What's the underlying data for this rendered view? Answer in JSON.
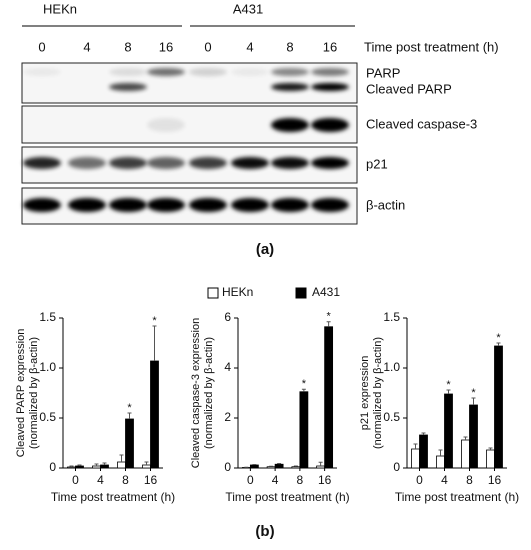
{
  "blot": {
    "cell_lines": [
      "HEKn",
      "A431"
    ],
    "time_points": [
      "0",
      "4",
      "8",
      "16",
      "0",
      "4",
      "8",
      "16"
    ],
    "x_label": "Time post treatment (h)",
    "rows": [
      [
        "PARP",
        "Cleaved PARP"
      ],
      [
        "Cleaved caspase-3"
      ],
      [
        "p21"
      ],
      [
        "β-actin"
      ]
    ]
  },
  "panel_labels": [
    "(a)",
    "(b)"
  ],
  "chart_data": [
    {
      "type": "bar",
      "y_label": [
        "Cleaved PARP expression",
        "(normalized by β-actin)"
      ],
      "x_label": "Time post treatment (h)",
      "categories": [
        "0",
        "4",
        "8",
        "16"
      ],
      "series": [
        {
          "name": "HEKn",
          "color": "#ffffff",
          "values": [
            0.01,
            0.02,
            0.06,
            0.03
          ],
          "errors": [
            0.01,
            0.02,
            0.07,
            0.03
          ],
          "markers": [
            null,
            null,
            null,
            null
          ]
        },
        {
          "name": "A431",
          "color": "#000000",
          "values": [
            0.02,
            0.03,
            0.49,
            1.07
          ],
          "errors": [
            0.01,
            0.02,
            0.06,
            0.35
          ],
          "markers": [
            null,
            null,
            "*",
            "*"
          ]
        }
      ],
      "ylim": [
        0,
        1.5
      ],
      "yticks": [
        0,
        0.5,
        {
          "value": 1,
          "label": "1.0"
        },
        1.5
      ]
    },
    {
      "type": "bar",
      "y_label": [
        "Cleaved caspase-3 expression",
        "(normalized by β-actin)"
      ],
      "x_label": "Time post treatment (h)",
      "categories": [
        "0",
        "4",
        "8",
        "16"
      ],
      "series": [
        {
          "color": "#ffffff",
          "values": [
            0.02,
            0.05,
            0.05,
            0.08
          ],
          "errors": [
            0.01,
            0.02,
            0.03,
            0.15
          ],
          "markers": [
            null,
            null,
            null,
            null
          ]
        },
        {
          "color": "#000000",
          "values": [
            0.12,
            0.15,
            3.05,
            5.65
          ],
          "errors": [
            0.02,
            0.03,
            0.1,
            0.2
          ],
          "markers": [
            null,
            null,
            "*",
            "*"
          ]
        }
      ],
      "ylim": [
        0,
        6
      ],
      "yticks": [
        0,
        2,
        4,
        6
      ]
    },
    {
      "type": "bar",
      "y_label": [
        "p21 expression",
        "(normalized by β-actin)"
      ],
      "x_label": "Time post treatment (h)",
      "categories": [
        "0",
        "4",
        "8",
        "16"
      ],
      "series": [
        {
          "color": "#ffffff",
          "values": [
            0.19,
            0.12,
            0.28,
            0.18
          ],
          "errors": [
            0.05,
            0.06,
            0.03,
            0.02
          ],
          "markers": [
            null,
            null,
            null,
            null
          ]
        },
        {
          "color": "#000000",
          "values": [
            0.33,
            0.74,
            0.63,
            1.22
          ],
          "errors": [
            0.02,
            0.04,
            0.07,
            0.03
          ],
          "markers": [
            null,
            "*",
            "*",
            "*"
          ]
        }
      ],
      "ylim": [
        0,
        1.5
      ],
      "yticks": [
        0,
        0.5,
        {
          "value": 1,
          "label": "1.0"
        },
        1.5
      ]
    }
  ]
}
